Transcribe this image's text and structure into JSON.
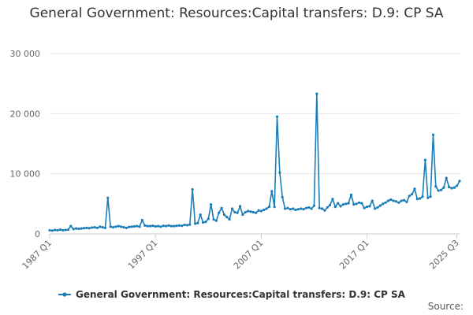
{
  "chart_data": {
    "type": "line",
    "title": "General Government: Resources:Capital transfers: D.9: CP SA",
    "xlabel": "",
    "ylabel": "",
    "x_tick_labels": [
      "1987 Q1",
      "1997 Q1",
      "2007 Q1",
      "2017 Q1",
      "2025 Q3"
    ],
    "x_tick_index": [
      0,
      40,
      80,
      120,
      154
    ],
    "y_ticks": [
      0,
      10000,
      20000,
      30000
    ],
    "y_tick_labels": [
      "0",
      "10 000",
      "20 000",
      "30 000"
    ],
    "ylim": [
      0,
      30000
    ],
    "grid": "horizontal",
    "legend_position": "bottom",
    "color": "#1a7db8",
    "series": [
      {
        "name": "General Government: Resources:Capital transfers: D.9: CP SA",
        "values": [
          600,
          550,
          650,
          600,
          700,
          600,
          650,
          700,
          1300,
          800,
          900,
          850,
          900,
          950,
          1000,
          950,
          1050,
          1100,
          1000,
          1200,
          1100,
          1000,
          6000,
          1200,
          1100,
          1200,
          1300,
          1200,
          1100,
          1000,
          1150,
          1200,
          1250,
          1300,
          1200,
          2300,
          1400,
          1300,
          1300,
          1350,
          1250,
          1300,
          1200,
          1350,
          1300,
          1400,
          1300,
          1300,
          1350,
          1400,
          1350,
          1500,
          1450,
          1550,
          7400,
          1700,
          1800,
          3200,
          1900,
          2000,
          2500,
          4900,
          2400,
          2200,
          3500,
          4300,
          3200,
          2800,
          2400,
          4200,
          3600,
          3500,
          4600,
          3200,
          3600,
          3800,
          3700,
          3600,
          3500,
          3900,
          3800,
          4000,
          4200,
          4500,
          7100,
          4500,
          19500,
          10200,
          6100,
          4200,
          4300,
          4100,
          4200,
          4000,
          4100,
          4200,
          4100,
          4300,
          4400,
          4200,
          4700,
          23300,
          4300,
          4200,
          3900,
          4400,
          4800,
          5800,
          4500,
          5100,
          4600,
          4900,
          5000,
          5100,
          6500,
          4900,
          5000,
          5200,
          5100,
          4300,
          4500,
          4600,
          5500,
          4200,
          4400,
          4700,
          5000,
          5200,
          5500,
          5700,
          5500,
          5400,
          5200,
          5500,
          5600,
          5300,
          6300,
          6600,
          7500,
          5800,
          5900,
          6200,
          12300,
          6000,
          6200,
          16500,
          7900,
          7200,
          7300,
          7700,
          9300,
          7800,
          7600,
          7700,
          8000,
          8800
        ]
      }
    ]
  },
  "source_label": "Source:"
}
